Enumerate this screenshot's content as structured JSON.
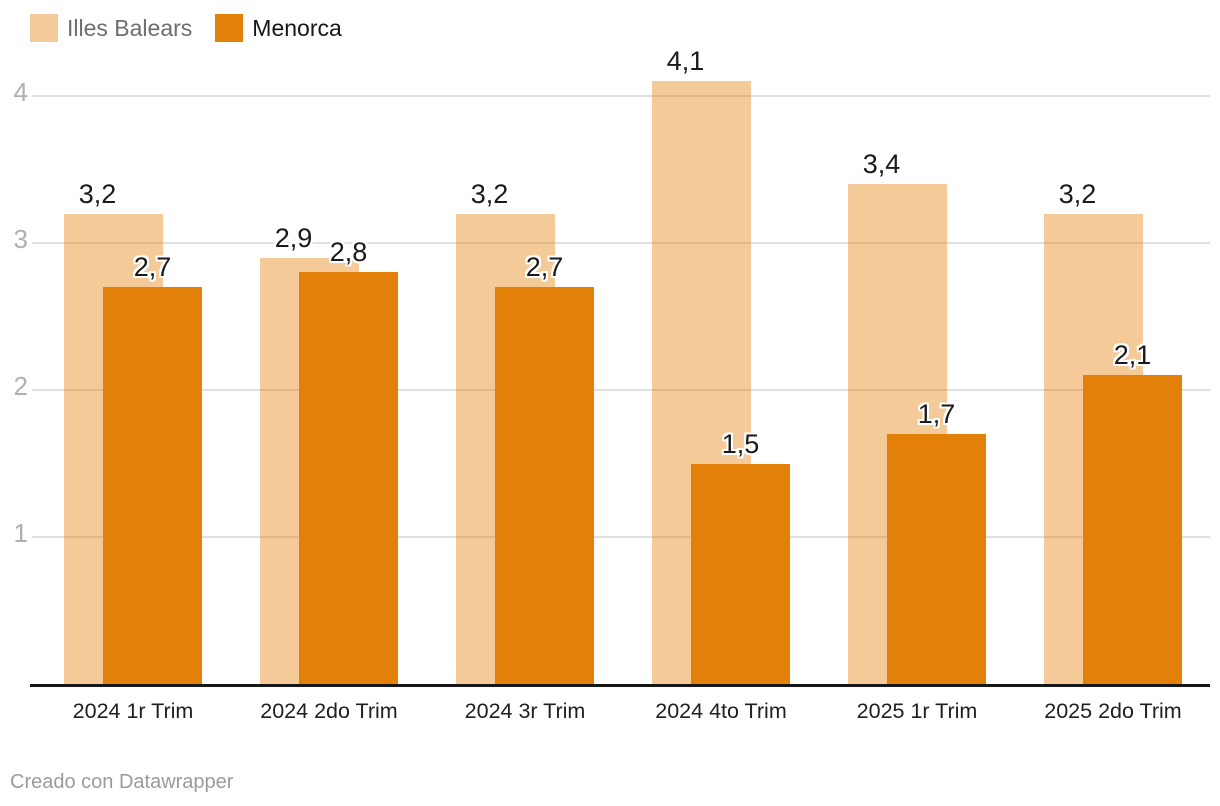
{
  "chart_data": {
    "type": "bar",
    "title": "",
    "categories": [
      "2024 1r Trim",
      "2024 2do Trim",
      "2024 3r Trim",
      "2024 4to Trim",
      "2025 1r Trim",
      "2025 2do Trim"
    ],
    "series": [
      {
        "name": "Illes Balears",
        "values": [
          3.2,
          2.9,
          3.2,
          4.1,
          3.4,
          3.2
        ],
        "labels": [
          "3,2",
          "2,9",
          "3,2",
          "4,1",
          "3,4",
          "3,2"
        ],
        "base_color": "#e2800a",
        "fill_opacity": 0.42,
        "effective_color": "#f2ca98",
        "legend_text_color": "#6e6e6e"
      },
      {
        "name": "Menorca",
        "values": [
          2.7,
          2.8,
          2.7,
          1.5,
          1.7,
          2.1
        ],
        "labels": [
          "2,7",
          "2,8",
          "2,7",
          "1,5",
          "1,7",
          "2,1"
        ],
        "base_color": "#e2800a",
        "fill_opacity": 1,
        "effective_color": "#e2800a",
        "legend_text_color": "#161616"
      }
    ],
    "yticks": [
      1,
      2,
      3,
      4
    ],
    "ytick_labels": [
      "1",
      "2",
      "3",
      "4"
    ],
    "ylim": [
      0,
      4.35
    ],
    "grid": true,
    "legend_position": "top-left",
    "colors": {
      "gridline": "#e0e0e0",
      "baseline": "#161616",
      "ytick_text": "#b0b0b0",
      "xtick_text": "#202020",
      "value_label_text": "#1a1a1a",
      "value_label_halo": "#ffffff"
    }
  },
  "footer": {
    "credit": "Creado con Datawrapper"
  }
}
